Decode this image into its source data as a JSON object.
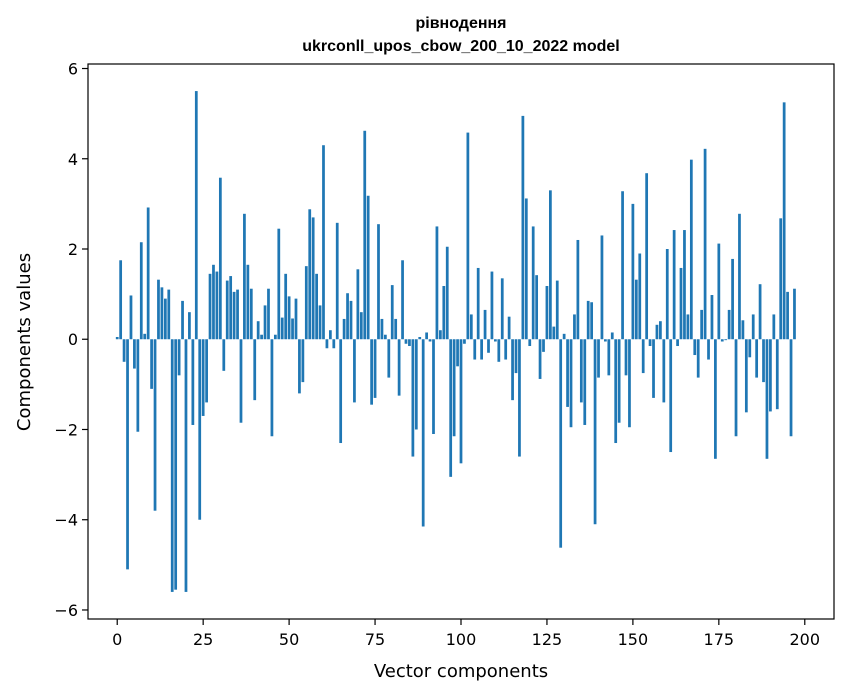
{
  "chart_data": {
    "type": "bar",
    "title_line1": "рівнодення",
    "title_line2": "ukrconll_upos_cbow_200_10_2022 model",
    "xlabel": "Vector components",
    "ylabel": "Components values",
    "xlim": [
      -8.5,
      208.5
    ],
    "ylim": [
      -6.2,
      6.1
    ],
    "xticks": [
      0,
      25,
      50,
      75,
      100,
      125,
      150,
      175,
      200
    ],
    "yticks": [
      -6,
      -4,
      -2,
      0,
      2,
      4,
      6
    ],
    "xtick_labels": [
      "0",
      "25",
      "50",
      "75",
      "100",
      "125",
      "150",
      "175",
      "200"
    ],
    "ytick_labels": [
      "−6",
      "−4",
      "−2",
      "0",
      "2",
      "4",
      "6"
    ],
    "color": "#1f77b4",
    "grid": false,
    "x_start": 0,
    "values": [
      0.05,
      1.75,
      -0.5,
      -5.1,
      0.97,
      -0.65,
      -2.05,
      2.15,
      0.12,
      2.92,
      -1.1,
      -3.8,
      1.32,
      1.15,
      0.9,
      1.1,
      -5.6,
      -5.55,
      -0.8,
      0.85,
      -5.6,
      0.6,
      -1.9,
      5.5,
      -4.0,
      -1.7,
      -1.4,
      1.45,
      1.65,
      1.5,
      3.58,
      -0.7,
      1.3,
      1.4,
      1.05,
      1.1,
      -1.85,
      2.78,
      1.65,
      1.12,
      -1.35,
      0.4,
      0.1,
      0.75,
      1.12,
      -2.15,
      0.1,
      2.45,
      0.48,
      1.45,
      0.95,
      0.46,
      0.9,
      -1.2,
      -0.95,
      1.62,
      2.88,
      2.7,
      1.45,
      0.75,
      4.3,
      -0.2,
      0.2,
      -0.2,
      2.58,
      -2.3,
      0.45,
      1.02,
      0.85,
      -1.4,
      1.55,
      0.6,
      4.62,
      3.18,
      -1.45,
      -1.3,
      2.55,
      0.45,
      0.1,
      -0.85,
      1.2,
      0.45,
      -1.25,
      1.75,
      -0.1,
      -0.15,
      -2.6,
      -2.0,
      0.05,
      -4.15,
      0.15,
      -0.05,
      -2.1,
      2.5,
      0.2,
      1.18,
      2.05,
      -3.05,
      -2.15,
      -0.6,
      -2.75,
      -0.1,
      4.58,
      0.55,
      -0.45,
      1.58,
      -0.45,
      0.65,
      -0.3,
      1.5,
      -0.05,
      -0.5,
      1.35,
      -0.45,
      0.5,
      -1.35,
      -0.75,
      -2.6,
      4.95,
      3.12,
      -0.15,
      2.5,
      1.42,
      -0.88,
      -0.28,
      1.18,
      3.3,
      0.28,
      1.3,
      -4.62,
      0.12,
      -1.5,
      -1.95,
      0.55,
      2.2,
      -1.4,
      -1.9,
      0.85,
      0.82,
      -4.1,
      -0.85,
      2.3,
      -0.05,
      -0.8,
      0.15,
      -2.3,
      -1.85,
      3.28,
      -0.8,
      -1.95,
      3.0,
      1.32,
      1.9,
      -0.75,
      3.68,
      -0.15,
      -1.3,
      0.32,
      0.4,
      -1.4,
      2.0,
      -2.5,
      2.42,
      -0.15,
      1.58,
      2.42,
      0.55,
      3.98,
      -0.35,
      -0.85,
      0.65,
      4.22,
      -0.45,
      0.98,
      -2.65,
      2.12,
      -0.05,
      -0.02,
      0.65,
      1.78,
      -2.15,
      2.78,
      0.42,
      -1.62,
      -0.4,
      0.55,
      -0.85,
      1.22,
      -0.95,
      -2.65,
      -1.6,
      0.55,
      -1.55,
      2.68,
      5.25,
      1.05,
      -2.15,
      1.12
    ]
  }
}
